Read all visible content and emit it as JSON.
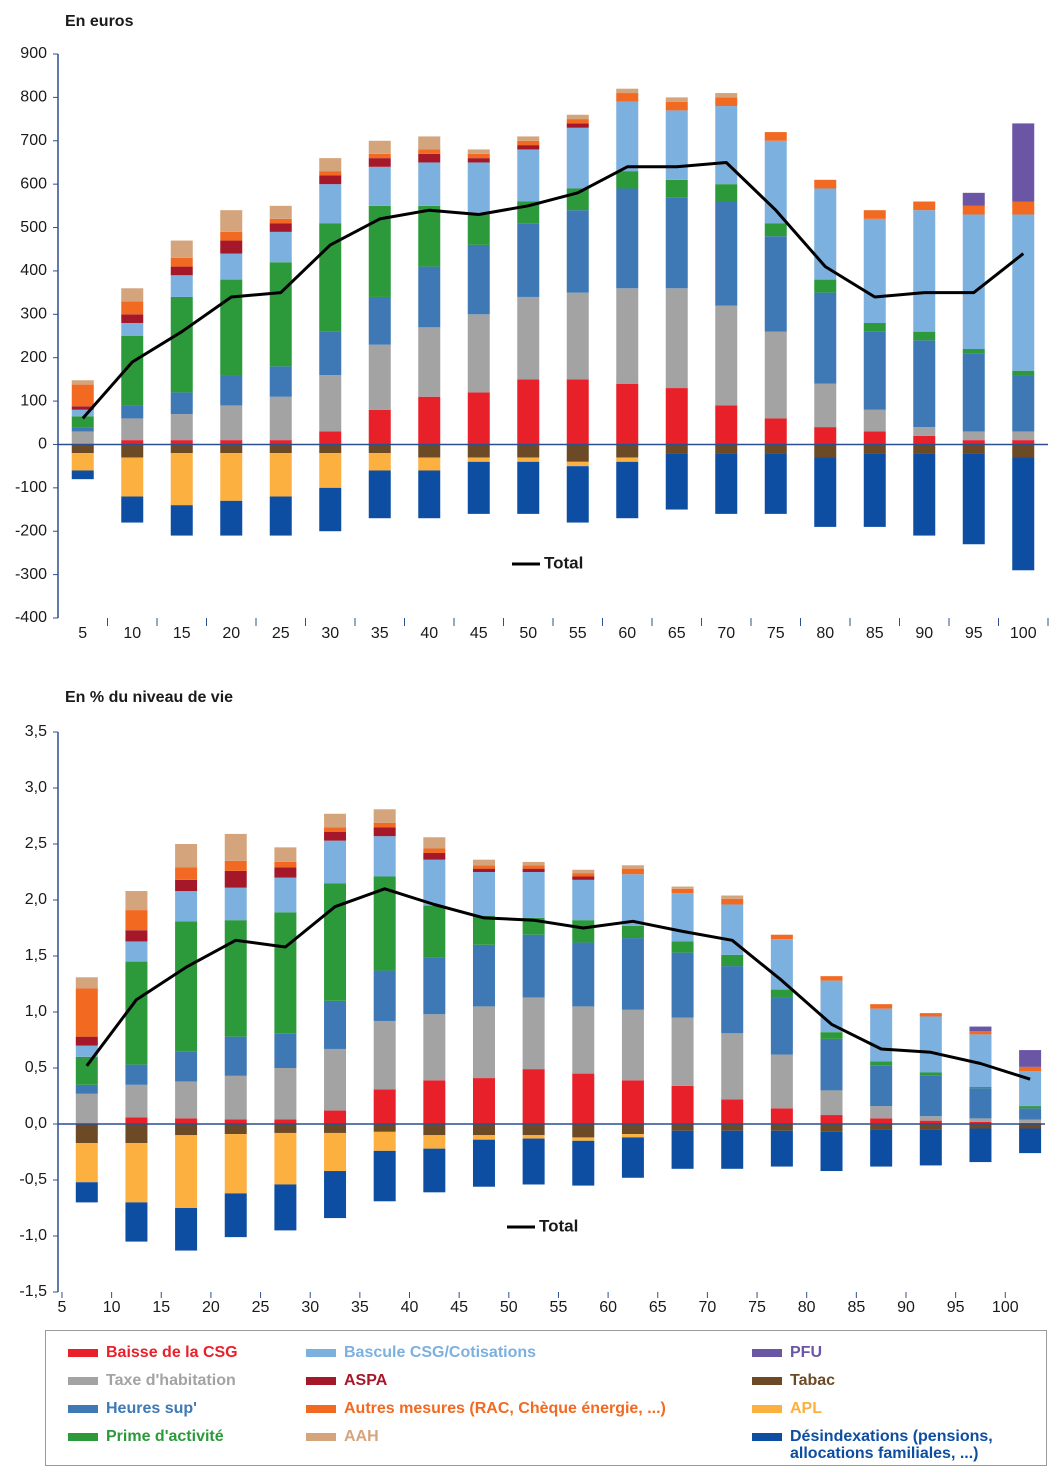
{
  "chart_data": [
    {
      "type": "bar",
      "stacked": true,
      "title": "En euros",
      "categories": [
        "5",
        "10",
        "15",
        "20",
        "25",
        "30",
        "35",
        "40",
        "45",
        "50",
        "55",
        "60",
        "65",
        "70",
        "75",
        "80",
        "85",
        "90",
        "95",
        "100"
      ],
      "ylim": [
        -400,
        900
      ],
      "yticks": [
        -400,
        -300,
        -200,
        -100,
        0,
        100,
        200,
        300,
        400,
        500,
        600,
        700,
        800,
        900
      ],
      "series": [
        {
          "name": "Baisse de la CSG",
          "color": "#e8202a",
          "values": [
            0,
            10,
            10,
            10,
            10,
            30,
            80,
            110,
            120,
            150,
            150,
            140,
            130,
            90,
            60,
            40,
            30,
            20,
            10,
            10
          ]
        },
        {
          "name": "Taxe d'habitation",
          "color": "#a3a3a3",
          "values": [
            30,
            50,
            60,
            80,
            100,
            130,
            150,
            160,
            180,
            190,
            200,
            220,
            230,
            230,
            200,
            100,
            50,
            20,
            20,
            20
          ]
        },
        {
          "name": "Heures sup'",
          "color": "#3e78b5",
          "values": [
            10,
            30,
            50,
            70,
            70,
            100,
            110,
            140,
            160,
            170,
            190,
            230,
            210,
            240,
            220,
            210,
            180,
            200,
            180,
            130
          ]
        },
        {
          "name": "Prime d'activité",
          "color": "#2c9a3b",
          "values": [
            25,
            160,
            220,
            220,
            240,
            250,
            210,
            140,
            70,
            50,
            50,
            40,
            40,
            40,
            30,
            30,
            20,
            20,
            10,
            10
          ]
        },
        {
          "name": "Bascule CSG/Cotisations",
          "color": "#7cb0de",
          "values": [
            15,
            30,
            50,
            60,
            70,
            90,
            90,
            100,
            120,
            120,
            140,
            160,
            160,
            180,
            190,
            210,
            240,
            280,
            310,
            360
          ]
        },
        {
          "name": "ASPA",
          "color": "#a5182a",
          "values": [
            8,
            20,
            20,
            30,
            20,
            20,
            20,
            20,
            10,
            10,
            10,
            0,
            0,
            0,
            0,
            0,
            0,
            0,
            0,
            0
          ]
        },
        {
          "name": "Autres mesures (RAC, Chèque énergie, ...)",
          "color": "#f26a22",
          "values": [
            50,
            30,
            20,
            20,
            10,
            10,
            10,
            10,
            10,
            10,
            10,
            20,
            20,
            20,
            20,
            20,
            20,
            20,
            20,
            30
          ]
        },
        {
          "name": "AAH",
          "color": "#d4a47c",
          "values": [
            10,
            30,
            40,
            50,
            30,
            30,
            30,
            30,
            10,
            10,
            10,
            10,
            10,
            10,
            0,
            0,
            0,
            0,
            0,
            0
          ]
        },
        {
          "name": "PFU",
          "color": "#6a56a4",
          "values": [
            0,
            0,
            0,
            0,
            0,
            0,
            0,
            0,
            0,
            0,
            0,
            0,
            0,
            0,
            0,
            0,
            0,
            0,
            30,
            180
          ]
        },
        {
          "name": "Tabac",
          "color": "#6b4a25",
          "values": [
            -20,
            -30,
            -20,
            -20,
            -20,
            -20,
            -20,
            -30,
            -30,
            -30,
            -40,
            -30,
            -20,
            -20,
            -20,
            -30,
            -20,
            -20,
            -20,
            -30
          ]
        },
        {
          "name": "APL",
          "color": "#fbb040",
          "values": [
            -40,
            -90,
            -120,
            -110,
            -100,
            -80,
            -40,
            -30,
            -10,
            -10,
            -10,
            -10,
            0,
            0,
            0,
            0,
            0,
            0,
            0,
            0
          ]
        },
        {
          "name": "Désindexations (pensions, allocations familiales, ...)",
          "color": "#0d4ea3",
          "values": [
            -20,
            -60,
            -70,
            -80,
            -90,
            -100,
            -110,
            -110,
            -120,
            -120,
            -130,
            -130,
            -130,
            -140,
            -140,
            -160,
            -170,
            -190,
            -210,
            -260
          ]
        },
        {
          "name": "Total",
          "type": "line",
          "color": "#000000",
          "values": [
            60,
            190,
            260,
            340,
            350,
            460,
            520,
            540,
            530,
            550,
            580,
            640,
            640,
            650,
            540,
            410,
            340,
            350,
            350,
            440
          ]
        }
      ]
    },
    {
      "type": "bar",
      "stacked": true,
      "title": "En % du niveau de vie",
      "x": [
        7.5,
        12.5,
        17.5,
        22.5,
        27.5,
        32.5,
        37.5,
        42.5,
        47.5,
        52.5,
        57.5,
        62.5,
        67.5,
        72.5,
        77.5,
        82.5,
        87.5,
        92.5,
        97.5,
        102.5
      ],
      "xlim": [
        4.6,
        104
      ],
      "xticks": [
        5,
        10,
        15,
        20,
        25,
        30,
        35,
        40,
        45,
        50,
        55,
        60,
        65,
        70,
        75,
        80,
        85,
        90,
        95,
        100
      ],
      "ylim": [
        -1.5,
        3.5
      ],
      "yticks": [
        {
          "value": -1.5,
          "label": "-1,5"
        },
        {
          "value": -1,
          "label": "-1,0"
        },
        {
          "value": -0.5,
          "label": "-0,5"
        },
        {
          "value": 0,
          "label": "0,0"
        },
        {
          "value": 0.5,
          "label": "0,5"
        },
        {
          "value": 1,
          "label": "1,0"
        },
        {
          "value": 1.5,
          "label": "1,5"
        },
        {
          "value": 2,
          "label": "2,0"
        },
        {
          "value": 2.5,
          "label": "2,5"
        },
        {
          "value": 3,
          "label": "3,0"
        },
        {
          "value": 3.5,
          "label": "3,5"
        }
      ],
      "series": [
        {
          "color": "#e8202a",
          "values": [
            0,
            0.06,
            0.05,
            0.04,
            0.04,
            0.12,
            0.31,
            0.39,
            0.41,
            0.49,
            0.45,
            0.39,
            0.34,
            0.22,
            0.14,
            0.08,
            0.05,
            0.03,
            0.02,
            0.01
          ]
        },
        {
          "color": "#a3a3a3",
          "values": [
            0.27,
            0.29,
            0.33,
            0.39,
            0.46,
            0.55,
            0.61,
            0.59,
            0.64,
            0.64,
            0.6,
            0.63,
            0.61,
            0.59,
            0.48,
            0.22,
            0.11,
            0.04,
            0.03,
            0.03
          ]
        },
        {
          "color": "#3e78b5",
          "values": [
            0.08,
            0.18,
            0.27,
            0.35,
            0.31,
            0.43,
            0.45,
            0.51,
            0.55,
            0.56,
            0.57,
            0.64,
            0.58,
            0.6,
            0.51,
            0.46,
            0.36,
            0.36,
            0.27,
            0.1
          ]
        },
        {
          "color": "#2c9a3b",
          "values": [
            0.25,
            0.92,
            1.16,
            1.04,
            1.08,
            1.05,
            0.84,
            0.46,
            0.26,
            0.15,
            0.2,
            0.11,
            0.1,
            0.1,
            0.07,
            0.06,
            0.04,
            0.03,
            0.01,
            0.02
          ]
        },
        {
          "color": "#7cb0de",
          "values": [
            0.1,
            0.18,
            0.27,
            0.29,
            0.31,
            0.38,
            0.36,
            0.41,
            0.39,
            0.41,
            0.36,
            0.46,
            0.43,
            0.45,
            0.45,
            0.46,
            0.47,
            0.5,
            0.47,
            0.31
          ]
        },
        {
          "color": "#a5182a",
          "values": [
            0.08,
            0.1,
            0.1,
            0.15,
            0.09,
            0.08,
            0.08,
            0.06,
            0.03,
            0.03,
            0.03,
            0,
            0,
            0,
            0,
            0,
            0,
            0,
            0,
            0
          ]
        },
        {
          "color": "#f26a22",
          "values": [
            0.43,
            0.18,
            0.11,
            0.09,
            0.05,
            0.04,
            0.04,
            0.04,
            0.03,
            0.03,
            0.03,
            0.05,
            0.04,
            0.05,
            0.04,
            0.04,
            0.04,
            0.03,
            0.03,
            0.04
          ]
        },
        {
          "color": "#d4a47c",
          "values": [
            0.1,
            0.17,
            0.21,
            0.24,
            0.13,
            0.12,
            0.12,
            0.1,
            0.05,
            0.03,
            0.03,
            0.03,
            0.02,
            0.03,
            0,
            0,
            0,
            0,
            0,
            0
          ]
        },
        {
          "color": "#6a56a4",
          "values": [
            0,
            0,
            0,
            0,
            0,
            0,
            0,
            0,
            0,
            0,
            0,
            0,
            0,
            0,
            0,
            0,
            0,
            0,
            0.04,
            0.15
          ]
        },
        {
          "color": "#6b4a25",
          "values": [
            -0.17,
            -0.17,
            -0.1,
            -0.09,
            -0.08,
            -0.08,
            -0.07,
            -0.1,
            -0.1,
            -0.1,
            -0.12,
            -0.09,
            -0.06,
            -0.06,
            -0.06,
            -0.07,
            -0.05,
            -0.05,
            -0.04,
            -0.04
          ]
        },
        {
          "color": "#fbb040",
          "values": [
            -0.35,
            -0.53,
            -0.65,
            -0.53,
            -0.46,
            -0.34,
            -0.17,
            -0.12,
            -0.04,
            -0.03,
            -0.03,
            -0.03,
            0,
            0,
            0,
            0,
            0,
            0,
            0,
            0
          ]
        },
        {
          "color": "#0d4ea3",
          "values": [
            -0.18,
            -0.35,
            -0.38,
            -0.39,
            -0.41,
            -0.42,
            -0.45,
            -0.39,
            -0.42,
            -0.41,
            -0.4,
            -0.36,
            -0.34,
            -0.34,
            -0.32,
            -0.35,
            -0.33,
            -0.32,
            -0.3,
            -0.22
          ]
        },
        {
          "name": "Total",
          "type": "line",
          "color": "#000000",
          "values": [
            0.52,
            1.11,
            1.4,
            1.64,
            1.58,
            1.94,
            2.1,
            1.96,
            1.84,
            1.82,
            1.75,
            1.81,
            1.72,
            1.64,
            1.28,
            0.89,
            0.67,
            0.64,
            0.54,
            0.4
          ]
        }
      ]
    }
  ]
}
